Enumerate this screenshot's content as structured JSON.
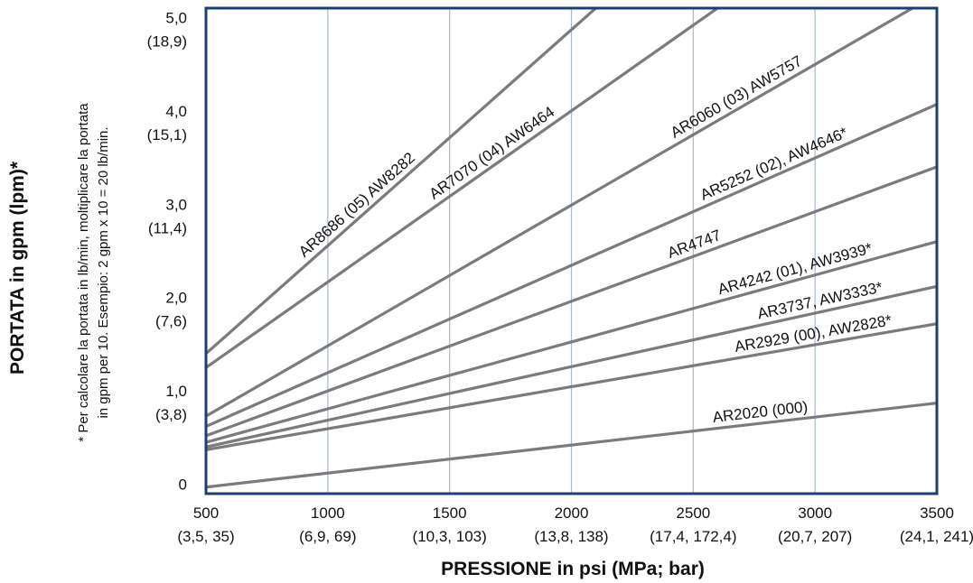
{
  "chart_data": {
    "type": "line",
    "xlabel": "PRESSIONE in psi (MPa; bar)",
    "ylabel": "PORTATA in gpm (lpm)*",
    "footnote": [
      "* Per calcolare la portata in lb/min, moltiplicare la portata",
      "in gpm per 10. Esempio: 2 gpm x 10 = 20 lb/min."
    ],
    "xlim": [
      500,
      3500
    ],
    "ylim": [
      -0.1,
      5.1
    ],
    "grid": true,
    "x_ticks": [
      {
        "value": 500,
        "label": "500",
        "sub": "(3,5, 35)"
      },
      {
        "value": 1000,
        "label": "1000",
        "sub": "(6,9, 69)"
      },
      {
        "value": 1500,
        "label": "1500",
        "sub": "(10,3, 103)"
      },
      {
        "value": 2000,
        "label": "2000",
        "sub": "(13,8, 138)"
      },
      {
        "value": 2500,
        "label": "2500",
        "sub": "(17,4, 172,4)"
      },
      {
        "value": 3000,
        "label": "3000",
        "sub": "(20,7, 207)"
      },
      {
        "value": 3500,
        "label": "3500",
        "sub": "(24,1, 241)"
      }
    ],
    "y_ticks": [
      {
        "value": 0,
        "label": "0",
        "sub": ""
      },
      {
        "value": 1,
        "label": "1,0",
        "sub": "(3,8)"
      },
      {
        "value": 2,
        "label": "2,0",
        "sub": "(7,6)"
      },
      {
        "value": 3,
        "label": "3,0",
        "sub": "(11,4)"
      },
      {
        "value": 4,
        "label": "4,0",
        "sub": "(15,1)"
      },
      {
        "value": 5,
        "label": "5,0",
        "sub": "(18,9)"
      }
    ],
    "series": [
      {
        "name": "AR8686 (05) AW8282",
        "x": [
          500,
          2100
        ],
        "y": [
          1.4,
          5.1
        ],
        "label_x": 1150
      },
      {
        "name": "AR7070 (04) AW6464",
        "x": [
          500,
          2600
        ],
        "y": [
          1.25,
          5.1
        ],
        "label_x": 1700
      },
      {
        "name": "AR6060 (03) AW5757",
        "x": [
          500,
          3400
        ],
        "y": [
          0.73,
          5.1
        ],
        "label_x": 2700
      },
      {
        "name": "AR5252 (02), AW4646*",
        "x": [
          500,
          3500
        ],
        "y": [
          0.62,
          4.07
        ],
        "label_x": 2850
      },
      {
        "name": "AR4747",
        "x": [
          500,
          3500
        ],
        "y": [
          0.52,
          3.4
        ],
        "label_x": 2520
      },
      {
        "name": "AR4242 (01), AW3939*",
        "x": [
          500,
          3500
        ],
        "y": [
          0.45,
          2.6
        ],
        "label_x": 2930
      },
      {
        "name": "AR3737, AW3333*",
        "x": [
          500,
          3500
        ],
        "y": [
          0.4,
          2.12
        ],
        "label_x": 3030
      },
      {
        "name": "AR2929 (00), AW2828*",
        "x": [
          500,
          3500
        ],
        "y": [
          0.37,
          1.72
        ],
        "label_x": 3000
      },
      {
        "name": "AR2020 (000)",
        "x": [
          500,
          3500
        ],
        "y": [
          -0.03,
          0.87
        ],
        "label_x": 2780
      }
    ],
    "colors": {
      "frame": "#1b3f74",
      "grid": "#a9b9cf",
      "line": "#7b7b7b"
    }
  }
}
